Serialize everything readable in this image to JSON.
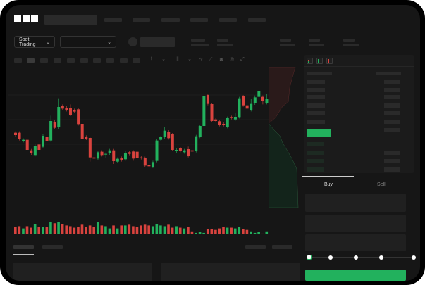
{
  "header": {
    "logo": "OKX"
  },
  "toolbar": {
    "market_selector": "Spot Trading",
    "pair_selector_icon": "chevron-down-icon"
  },
  "trade_panel": {
    "tabs": [
      {
        "label": "Buy",
        "active": true
      },
      {
        "label": "Sell",
        "active": false
      }
    ],
    "slider_level": 0
  },
  "colors": {
    "up": "#22b15d",
    "down": "#d9433e",
    "background": "#161616",
    "buy_button": "#22b15d"
  },
  "chart_data": {
    "type": "candlestick",
    "candles": [
      [
        175,
        181,
        159,
        165
      ],
      [
        175,
        181,
        142,
        148
      ],
      [
        140,
        151,
        134,
        145
      ],
      [
        145,
        151,
        96,
        102
      ],
      [
        100,
        106,
        81,
        87
      ],
      [
        80,
        126,
        74,
        120
      ],
      [
        125,
        131,
        96,
        102
      ],
      [
        115,
        168,
        109,
        162
      ],
      [
        158,
        164,
        132,
        138
      ],
      [
        142,
        248,
        136,
        225
      ],
      [
        222,
        228,
        190,
        196
      ],
      [
        198,
        322,
        192,
        285
      ],
      [
        290,
        296,
        272,
        278
      ],
      [
        282,
        288,
        266,
        272
      ],
      [
        282,
        296,
        246,
        252
      ],
      [
        272,
        278,
        259,
        265
      ],
      [
        275,
        281,
        206,
        212
      ],
      [
        213,
        219,
        144,
        150
      ],
      [
        158,
        164,
        144,
        150
      ],
      [
        153,
        159,
        52,
        70
      ],
      [
        70,
        76,
        59,
        65
      ],
      [
        65,
        98,
        59,
        92
      ],
      [
        94,
        100,
        74,
        80
      ],
      [
        82,
        91,
        68,
        85
      ],
      [
        87,
        106,
        81,
        100
      ],
      [
        100,
        106,
        42,
        54
      ],
      [
        52,
        70,
        46,
        64
      ],
      [
        68,
        74,
        52,
        58
      ],
      [
        62,
        96,
        56,
        90
      ],
      [
        92,
        98,
        79,
        85
      ],
      [
        95,
        101,
        56,
        65
      ],
      [
        94,
        100,
        62,
        68
      ],
      [
        70,
        76,
        61,
        67
      ],
      [
        67,
        73,
        29,
        35
      ],
      [
        38,
        44,
        26,
        32
      ],
      [
        30,
        56,
        24,
        50
      ],
      [
        55,
        148,
        49,
        142
      ],
      [
        145,
        162,
        139,
        156
      ],
      [
        156,
        198,
        150,
        184
      ],
      [
        180,
        186,
        146,
        152
      ],
      [
        168,
        174,
        96,
        102
      ],
      [
        100,
        108,
        90,
        102
      ],
      [
        108,
        114,
        92,
        98
      ],
      [
        92,
        106,
        86,
        100
      ],
      [
        105,
        116,
        70,
        77
      ],
      [
        100,
        112,
        89,
        95
      ],
      [
        97,
        166,
        91,
        160
      ],
      [
        158,
        210,
        152,
        204
      ],
      [
        204,
        375,
        198,
        330
      ],
      [
        336,
        342,
        292,
        298
      ],
      [
        297,
        303,
        219,
        225
      ],
      [
        232,
        238,
        219,
        225
      ],
      [
        224,
        230,
        202,
        208
      ],
      [
        213,
        219,
        202,
        208
      ],
      [
        200,
        244,
        194,
        238
      ],
      [
        242,
        248,
        232,
        238
      ],
      [
        232,
        260,
        226,
        243
      ],
      [
        242,
        328,
        236,
        322
      ],
      [
        330,
        336,
        286,
        292
      ],
      [
        292,
        298,
        272,
        278
      ],
      [
        272,
        318,
        266,
        298
      ],
      [
        300,
        334,
        294,
        326
      ],
      [
        328,
        366,
        322,
        352
      ],
      [
        328,
        334,
        296,
        310
      ],
      [
        302,
        340,
        296,
        320
      ]
    ],
    "volume": [
      10,
      11,
      8,
      11,
      9,
      14,
      10,
      10,
      10,
      17,
      15,
      17,
      14,
      12,
      11,
      9,
      10,
      13,
      10,
      12,
      10,
      17,
      12,
      11,
      8,
      12,
      8,
      12,
      12,
      13,
      11,
      10,
      12,
      13,
      12,
      11,
      14,
      12,
      11,
      13,
      9,
      11,
      9,
      8,
      10,
      4,
      2,
      3,
      2,
      7,
      7,
      6,
      8,
      10,
      9,
      9,
      8,
      10,
      7,
      6,
      4,
      2,
      3,
      1,
      4
    ],
    "legend": null
  },
  "bottom": {
    "tabs_count": 2
  }
}
